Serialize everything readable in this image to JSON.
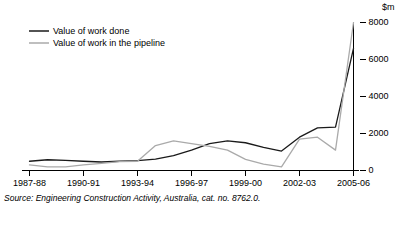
{
  "chart_data": {
    "type": "line",
    "categories": [
      "1987-88",
      null,
      null,
      "1990-91",
      null,
      null,
      "1993-94",
      null,
      null,
      "1996-97",
      null,
      null,
      "1999-00",
      null,
      null,
      "2002-03",
      null,
      null,
      "2005-06"
    ],
    "series": [
      {
        "name": "Value of work done",
        "color": "#1a1a1a",
        "values": [
          500,
          580,
          550,
          500,
          460,
          500,
          530,
          620,
          800,
          1100,
          1450,
          1600,
          1500,
          1250,
          1050,
          1800,
          2300,
          2350,
          6600
        ]
      },
      {
        "name": "Value of work in the pipeline",
        "color": "#aaaaaa",
        "values": [
          300,
          200,
          200,
          300,
          380,
          480,
          500,
          1350,
          1600,
          1450,
          1300,
          1100,
          600,
          350,
          200,
          1700,
          1800,
          1100,
          8000
        ]
      }
    ],
    "ylabel": "$m",
    "source": "Source: Engineering Construction Activity, Australia, cat. no. 8762.0.",
    "ylim": [
      0,
      8000
    ],
    "yticks": [
      0,
      2000,
      4000,
      6000,
      8000
    ],
    "grid": false,
    "legend": "upper left"
  }
}
